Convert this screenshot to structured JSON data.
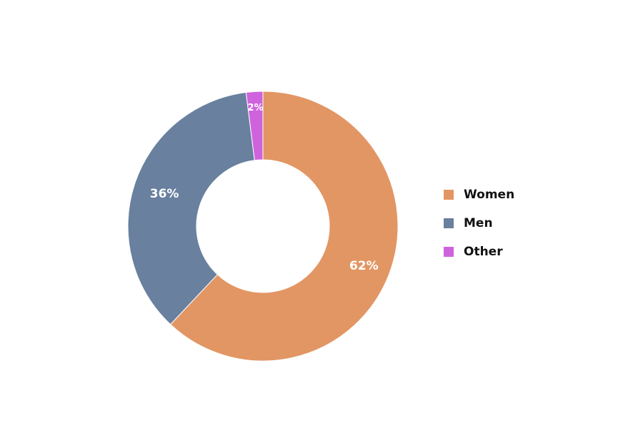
{
  "chart_data": {
    "type": "pie",
    "variant": "donut",
    "title": "",
    "categories": [
      "Women",
      "Men",
      "Other"
    ],
    "values": [
      62,
      36,
      2
    ],
    "labels": [
      "62%",
      "36%",
      "2%"
    ],
    "colors": [
      "#E29664",
      "#69809F",
      "#CF63DE"
    ],
    "legend_position": "right",
    "start_angle_deg": 0,
    "direction": "clockwise"
  },
  "legend": {
    "items": [
      {
        "label": "Women",
        "color": "#E29664"
      },
      {
        "label": "Men",
        "color": "#69809F"
      },
      {
        "label": "Other",
        "color": "#CF63DE"
      }
    ]
  }
}
